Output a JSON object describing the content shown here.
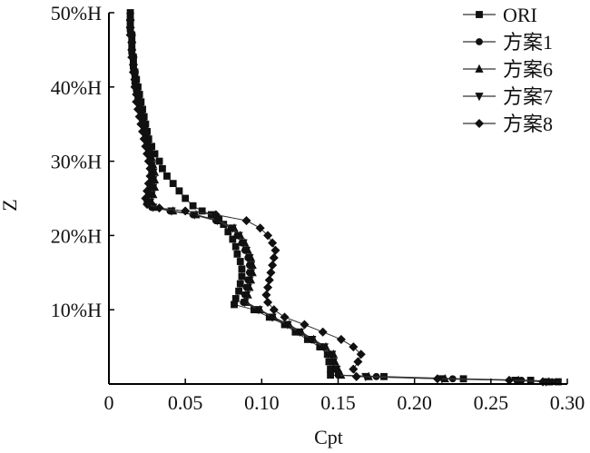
{
  "chart_data": {
    "type": "line",
    "title": "",
    "xlabel": "Cpt",
    "ylabel": "Z",
    "xlim": [
      0,
      0.3
    ],
    "ylim": [
      0,
      50
    ],
    "grid": false,
    "legend_position": "top-right",
    "xticks": [
      {
        "value": 0,
        "label": "0"
      },
      {
        "value": 0.05,
        "label": "0.05"
      },
      {
        "value": 0.1,
        "label": "0.10"
      },
      {
        "value": 0.15,
        "label": "0.15"
      },
      {
        "value": 0.2,
        "label": "0.20"
      },
      {
        "value": 0.25,
        "label": "0.25"
      },
      {
        "value": 0.3,
        "label": "0.30"
      }
    ],
    "yticks": [
      {
        "value": 10,
        "label": "10%H"
      },
      {
        "value": 20,
        "label": "20%H"
      },
      {
        "value": 30,
        "label": "30%H"
      },
      {
        "value": 40,
        "label": "40%H"
      },
      {
        "value": 50,
        "label": "50%H"
      }
    ],
    "series": [
      {
        "name": "ORI",
        "marker": "square",
        "points": [
          [
            0.294,
            0.3
          ],
          [
            0.276,
            0.5
          ],
          [
            0.232,
            0.7
          ],
          [
            0.18,
            1.0
          ],
          [
            0.145,
            1.2
          ],
          [
            0.145,
            2
          ],
          [
            0.144,
            3
          ],
          [
            0.143,
            4
          ],
          [
            0.138,
            5
          ],
          [
            0.13,
            6
          ],
          [
            0.122,
            7
          ],
          [
            0.115,
            8
          ],
          [
            0.105,
            9
          ],
          [
            0.095,
            10
          ],
          [
            0.082,
            10.7
          ],
          [
            0.083,
            11.5
          ],
          [
            0.085,
            12.5
          ],
          [
            0.086,
            13.5
          ],
          [
            0.087,
            14.5
          ],
          [
            0.087,
            15.5
          ],
          [
            0.086,
            16.5
          ],
          [
            0.084,
            17.5
          ],
          [
            0.083,
            18.5
          ],
          [
            0.081,
            19.5
          ],
          [
            0.078,
            20.5
          ],
          [
            0.075,
            21.5
          ],
          [
            0.072,
            22.2
          ],
          [
            0.067,
            22.8
          ],
          [
            0.061,
            23.3
          ],
          [
            0.055,
            24.0
          ],
          [
            0.05,
            25.0
          ],
          [
            0.046,
            26.0
          ],
          [
            0.042,
            27.0
          ],
          [
            0.038,
            28.0
          ],
          [
            0.035,
            29.0
          ],
          [
            0.033,
            30.0
          ],
          [
            0.03,
            31.0
          ],
          [
            0.028,
            32.0
          ],
          [
            0.026,
            33.0
          ],
          [
            0.025,
            34.0
          ],
          [
            0.024,
            35.0
          ],
          [
            0.023,
            36.0
          ],
          [
            0.022,
            37.0
          ],
          [
            0.021,
            38.0
          ],
          [
            0.02,
            39.0
          ],
          [
            0.019,
            40.0
          ],
          [
            0.018,
            41.0
          ],
          [
            0.017,
            42.0
          ],
          [
            0.016,
            43.0
          ],
          [
            0.016,
            44.0
          ],
          [
            0.015,
            45.0
          ],
          [
            0.015,
            46.0
          ],
          [
            0.015,
            47.0
          ],
          [
            0.014,
            48.0
          ],
          [
            0.014,
            49.0
          ],
          [
            0.014,
            50.0
          ]
        ]
      },
      {
        "name": "方案1",
        "marker": "circle",
        "points": [
          [
            0.29,
            0.3
          ],
          [
            0.27,
            0.5
          ],
          [
            0.225,
            0.7
          ],
          [
            0.175,
            1.0
          ],
          [
            0.15,
            1.2
          ],
          [
            0.148,
            2
          ],
          [
            0.146,
            3
          ],
          [
            0.145,
            4
          ],
          [
            0.14,
            5
          ],
          [
            0.132,
            6
          ],
          [
            0.124,
            7
          ],
          [
            0.116,
            8
          ],
          [
            0.107,
            9
          ],
          [
            0.098,
            10
          ],
          [
            0.088,
            11
          ],
          [
            0.089,
            12
          ],
          [
            0.09,
            13
          ],
          [
            0.091,
            14
          ],
          [
            0.092,
            15
          ],
          [
            0.092,
            16
          ],
          [
            0.091,
            17
          ],
          [
            0.089,
            18
          ],
          [
            0.087,
            19
          ],
          [
            0.084,
            20
          ],
          [
            0.08,
            21
          ],
          [
            0.07,
            22
          ],
          [
            0.055,
            22.8
          ],
          [
            0.04,
            23.3
          ],
          [
            0.028,
            23.8
          ],
          [
            0.025,
            24.5
          ],
          [
            0.026,
            25.5
          ],
          [
            0.027,
            26.5
          ],
          [
            0.028,
            27.5
          ],
          [
            0.028,
            28.5
          ],
          [
            0.028,
            29.5
          ],
          [
            0.027,
            30.5
          ],
          [
            0.026,
            31.5
          ],
          [
            0.025,
            32.5
          ],
          [
            0.024,
            33.5
          ],
          [
            0.023,
            34.5
          ],
          [
            0.022,
            35.5
          ],
          [
            0.021,
            36.5
          ],
          [
            0.02,
            37.5
          ],
          [
            0.019,
            38.5
          ],
          [
            0.018,
            39.5
          ],
          [
            0.017,
            40.5
          ],
          [
            0.017,
            41.5
          ],
          [
            0.016,
            42.5
          ],
          [
            0.016,
            43.5
          ],
          [
            0.015,
            44.5
          ],
          [
            0.015,
            45.5
          ],
          [
            0.015,
            46.5
          ],
          [
            0.014,
            47.5
          ],
          [
            0.014,
            48.5
          ],
          [
            0.014,
            49.5
          ]
        ]
      },
      {
        "name": "方案6",
        "marker": "triangle-up",
        "points": [
          [
            0.288,
            0.3
          ],
          [
            0.268,
            0.5
          ],
          [
            0.22,
            0.7
          ],
          [
            0.17,
            1.0
          ],
          [
            0.152,
            1.2
          ],
          [
            0.15,
            2
          ],
          [
            0.148,
            3
          ],
          [
            0.147,
            4
          ],
          [
            0.142,
            5
          ],
          [
            0.134,
            6
          ],
          [
            0.126,
            7
          ],
          [
            0.118,
            8
          ],
          [
            0.108,
            9
          ],
          [
            0.099,
            10
          ],
          [
            0.09,
            11
          ],
          [
            0.091,
            12
          ],
          [
            0.092,
            13
          ],
          [
            0.093,
            14
          ],
          [
            0.094,
            15
          ],
          [
            0.094,
            16
          ],
          [
            0.093,
            17
          ],
          [
            0.091,
            18
          ],
          [
            0.089,
            19
          ],
          [
            0.086,
            20
          ],
          [
            0.082,
            21
          ],
          [
            0.072,
            22
          ],
          [
            0.057,
            22.8
          ],
          [
            0.042,
            23.3
          ],
          [
            0.03,
            23.8
          ],
          [
            0.028,
            24.5
          ],
          [
            0.029,
            25.5
          ],
          [
            0.03,
            26.5
          ],
          [
            0.03,
            27.5
          ],
          [
            0.03,
            28.5
          ],
          [
            0.029,
            29.5
          ],
          [
            0.028,
            30.5
          ],
          [
            0.027,
            31.5
          ],
          [
            0.026,
            32.5
          ],
          [
            0.025,
            33.5
          ],
          [
            0.024,
            34.5
          ],
          [
            0.023,
            35.5
          ],
          [
            0.022,
            36.5
          ],
          [
            0.021,
            37.5
          ],
          [
            0.02,
            38.5
          ],
          [
            0.019,
            39.5
          ],
          [
            0.018,
            40.5
          ],
          [
            0.017,
            41.5
          ],
          [
            0.017,
            42.5
          ],
          [
            0.016,
            43.5
          ],
          [
            0.016,
            44.5
          ],
          [
            0.015,
            45.5
          ],
          [
            0.015,
            46.5
          ],
          [
            0.015,
            47.5
          ],
          [
            0.014,
            48.5
          ],
          [
            0.014,
            49.5
          ]
        ]
      },
      {
        "name": "方案7",
        "marker": "triangle-down",
        "points": [
          [
            0.286,
            0.3
          ],
          [
            0.266,
            0.5
          ],
          [
            0.218,
            0.7
          ],
          [
            0.168,
            1.0
          ],
          [
            0.15,
            1.2
          ],
          [
            0.149,
            2
          ],
          [
            0.147,
            3
          ],
          [
            0.146,
            4
          ],
          [
            0.141,
            5
          ],
          [
            0.133,
            6
          ],
          [
            0.125,
            7
          ],
          [
            0.117,
            8
          ],
          [
            0.107,
            9
          ],
          [
            0.098,
            10
          ],
          [
            0.089,
            11
          ],
          [
            0.09,
            12
          ],
          [
            0.091,
            13
          ],
          [
            0.092,
            14
          ],
          [
            0.093,
            15
          ],
          [
            0.093,
            16
          ],
          [
            0.092,
            17
          ],
          [
            0.09,
            18
          ],
          [
            0.088,
            19
          ],
          [
            0.085,
            20
          ],
          [
            0.081,
            21
          ],
          [
            0.071,
            22
          ],
          [
            0.056,
            22.8
          ],
          [
            0.041,
            23.3
          ],
          [
            0.029,
            23.8
          ],
          [
            0.027,
            24.5
          ],
          [
            0.028,
            25.5
          ],
          [
            0.029,
            26.5
          ],
          [
            0.029,
            27.5
          ],
          [
            0.029,
            28.5
          ],
          [
            0.028,
            29.5
          ],
          [
            0.027,
            30.5
          ],
          [
            0.026,
            31.5
          ],
          [
            0.025,
            32.5
          ],
          [
            0.024,
            33.5
          ],
          [
            0.023,
            34.5
          ],
          [
            0.022,
            35.5
          ],
          [
            0.021,
            36.5
          ],
          [
            0.02,
            37.5
          ],
          [
            0.019,
            38.5
          ],
          [
            0.018,
            39.5
          ],
          [
            0.017,
            40.5
          ],
          [
            0.017,
            41.5
          ],
          [
            0.016,
            42.5
          ],
          [
            0.016,
            43.5
          ],
          [
            0.015,
            44.5
          ],
          [
            0.015,
            45.5
          ],
          [
            0.015,
            46.5
          ],
          [
            0.014,
            47.5
          ],
          [
            0.014,
            48.5
          ],
          [
            0.014,
            49.5
          ]
        ]
      },
      {
        "name": "方案8",
        "marker": "diamond",
        "points": [
          [
            0.284,
            0.3
          ],
          [
            0.262,
            0.5
          ],
          [
            0.215,
            0.7
          ],
          [
            0.162,
            1.0
          ],
          [
            0.16,
            2
          ],
          [
            0.163,
            3
          ],
          [
            0.165,
            4
          ],
          [
            0.16,
            5
          ],
          [
            0.152,
            6
          ],
          [
            0.14,
            7
          ],
          [
            0.128,
            8
          ],
          [
            0.115,
            9
          ],
          [
            0.108,
            10
          ],
          [
            0.104,
            11
          ],
          [
            0.103,
            12
          ],
          [
            0.104,
            13
          ],
          [
            0.105,
            14
          ],
          [
            0.106,
            15
          ],
          [
            0.107,
            16
          ],
          [
            0.108,
            17
          ],
          [
            0.109,
            18
          ],
          [
            0.107,
            19
          ],
          [
            0.104,
            20
          ],
          [
            0.099,
            21
          ],
          [
            0.09,
            22
          ],
          [
            0.07,
            22.8
          ],
          [
            0.05,
            23.3
          ],
          [
            0.033,
            23.7
          ],
          [
            0.025,
            24.2
          ],
          [
            0.024,
            25.0
          ],
          [
            0.025,
            26.0
          ],
          [
            0.026,
            27.0
          ],
          [
            0.027,
            28.0
          ],
          [
            0.027,
            29.0
          ],
          [
            0.026,
            30.0
          ],
          [
            0.025,
            31.0
          ],
          [
            0.024,
            32.0
          ],
          [
            0.023,
            33.0
          ],
          [
            0.022,
            34.0
          ],
          [
            0.021,
            35.0
          ],
          [
            0.02,
            36.0
          ],
          [
            0.019,
            37.0
          ],
          [
            0.018,
            38.0
          ],
          [
            0.018,
            39.0
          ],
          [
            0.017,
            40.0
          ],
          [
            0.017,
            41.0
          ],
          [
            0.016,
            42.0
          ],
          [
            0.016,
            43.0
          ],
          [
            0.015,
            44.0
          ],
          [
            0.015,
            45.0
          ],
          [
            0.015,
            46.0
          ],
          [
            0.014,
            47.0
          ],
          [
            0.014,
            48.0
          ],
          [
            0.014,
            49.0
          ]
        ]
      }
    ]
  }
}
